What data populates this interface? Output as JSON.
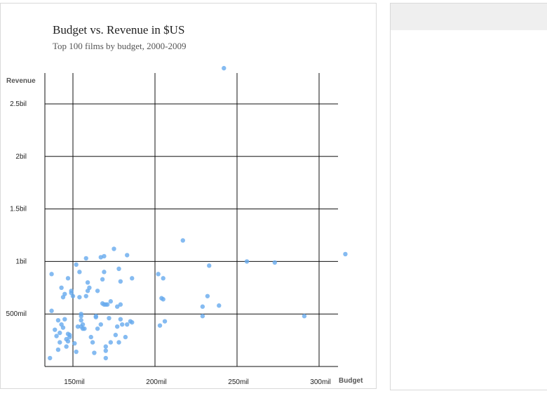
{
  "chart_data": {
    "type": "scatter",
    "title": "Budget vs. Revenue in $US",
    "subtitle": "Top 100 films by budget, 2000-2009",
    "xlabel": "Budget",
    "ylabel": "Revenue",
    "xlim": [
      132,
      312
    ],
    "ylim": [
      0,
      2750
    ],
    "grid": true,
    "x_ticks": [
      {
        "value": 150,
        "label": "150mil"
      },
      {
        "value": 200,
        "label": "200mil"
      },
      {
        "value": 250,
        "label": "250mil"
      },
      {
        "value": 300,
        "label": "300mil"
      }
    ],
    "y_ticks": [
      {
        "value": 500,
        "label": "500mil"
      },
      {
        "value": 1000,
        "label": "1bil"
      },
      {
        "value": 1500,
        "label": "1.5bil"
      },
      {
        "value": 2000,
        "label": "2bil"
      },
      {
        "value": 2500,
        "label": "2.5bil"
      }
    ],
    "point_color": "#66aaee",
    "points": [
      [
        136,
        80
      ],
      [
        137,
        880
      ],
      [
        137,
        530
      ],
      [
        139,
        350
      ],
      [
        140,
        290
      ],
      [
        141,
        440
      ],
      [
        141,
        160
      ],
      [
        142,
        320
      ],
      [
        142,
        230
      ],
      [
        143,
        400
      ],
      [
        143,
        750
      ],
      [
        144,
        660
      ],
      [
        144,
        370
      ],
      [
        145,
        450
      ],
      [
        145,
        690
      ],
      [
        146,
        190
      ],
      [
        146,
        260
      ],
      [
        147,
        240
      ],
      [
        147,
        310
      ],
      [
        147,
        840
      ],
      [
        148,
        280
      ],
      [
        148,
        300
      ],
      [
        149,
        700
      ],
      [
        149,
        720
      ],
      [
        150,
        670
      ],
      [
        151,
        220
      ],
      [
        152,
        140
      ],
      [
        152,
        970
      ],
      [
        153,
        380
      ],
      [
        154,
        660
      ],
      [
        154,
        900
      ],
      [
        155,
        500
      ],
      [
        155,
        440
      ],
      [
        155,
        380
      ],
      [
        155,
        480
      ],
      [
        156,
        360
      ],
      [
        156,
        400
      ],
      [
        157,
        360
      ],
      [
        158,
        1030
      ],
      [
        158,
        670
      ],
      [
        159,
        720
      ],
      [
        159,
        800
      ],
      [
        160,
        750
      ],
      [
        161,
        280
      ],
      [
        162,
        230
      ],
      [
        163,
        130
      ],
      [
        164,
        470
      ],
      [
        164,
        480
      ],
      [
        165,
        720
      ],
      [
        165,
        360
      ],
      [
        167,
        1040
      ],
      [
        167,
        400
      ],
      [
        168,
        830
      ],
      [
        168,
        600
      ],
      [
        169,
        1050
      ],
      [
        169,
        900
      ],
      [
        169,
        590
      ],
      [
        170,
        150
      ],
      [
        170,
        190
      ],
      [
        170,
        590
      ],
      [
        170,
        80
      ],
      [
        171,
        590
      ],
      [
        172,
        460
      ],
      [
        173,
        620
      ],
      [
        173,
        230
      ],
      [
        175,
        1120
      ],
      [
        176,
        300
      ],
      [
        177,
        570
      ],
      [
        177,
        380
      ],
      [
        178,
        230
      ],
      [
        178,
        930
      ],
      [
        179,
        810
      ],
      [
        179,
        590
      ],
      [
        179,
        450
      ],
      [
        180,
        400
      ],
      [
        182,
        280
      ],
      [
        183,
        1060
      ],
      [
        183,
        400
      ],
      [
        185,
        430
      ],
      [
        186,
        420
      ],
      [
        186,
        840
      ],
      [
        202,
        880
      ],
      [
        203,
        390
      ],
      [
        204,
        650
      ],
      [
        205,
        840
      ],
      [
        205,
        640
      ],
      [
        206,
        430
      ],
      [
        217,
        1200
      ],
      [
        229,
        570
      ],
      [
        229,
        480
      ],
      [
        232,
        670
      ],
      [
        233,
        960
      ],
      [
        239,
        580
      ],
      [
        242,
        2840
      ],
      [
        256,
        1000
      ],
      [
        273,
        990
      ],
      [
        291,
        480
      ],
      [
        316,
        1070
      ]
    ]
  },
  "side_panel": {}
}
